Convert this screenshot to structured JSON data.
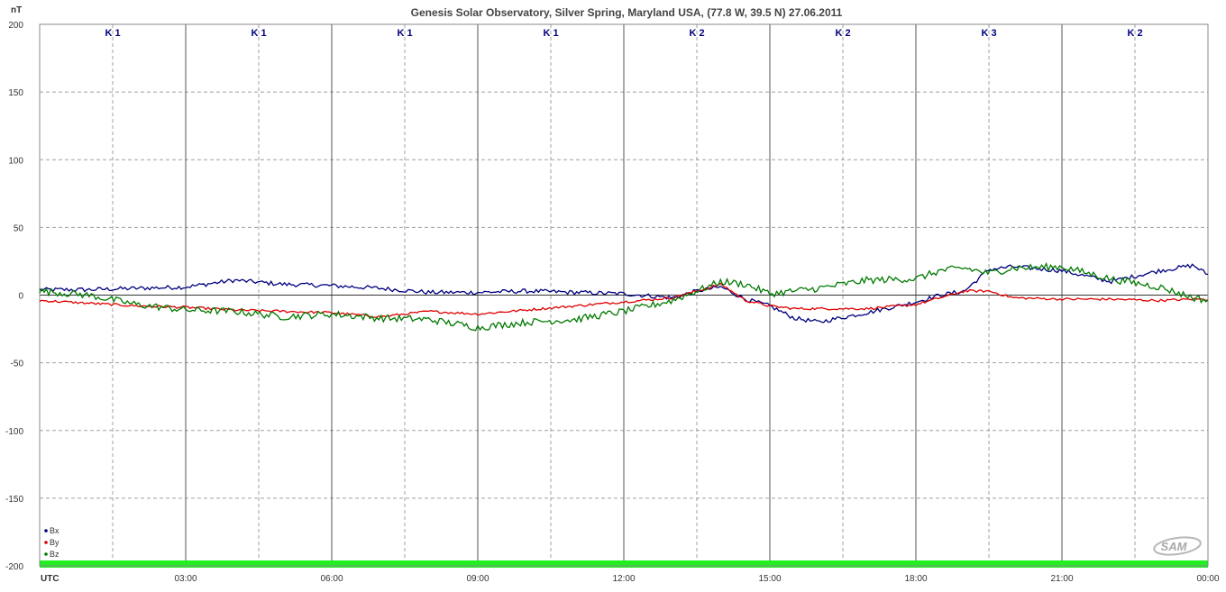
{
  "chart_data": {
    "type": "line",
    "title": "Genesis Solar Observatory, Silver Spring, Maryland USA, (77.8 W, 39.5 N)  27.06.2011",
    "ylabel": "nT",
    "xlabel": "UTC",
    "ylim": [
      -200,
      200
    ],
    "xlim_hours": [
      0,
      24
    ],
    "y_ticks": [
      200,
      150,
      100,
      50,
      0,
      -50,
      -100,
      -150,
      -200
    ],
    "x_ticks": [
      "03:00",
      "06:00",
      "09:00",
      "12:00",
      "15:00",
      "18:00",
      "21:00",
      "00:00"
    ],
    "grid": true,
    "k_indices": [
      "K 1",
      "K 1",
      "K 1",
      "K 1",
      "K 2",
      "K 2",
      "K 3",
      "K 2"
    ],
    "legend": {
      "position": "bottom-left",
      "entries": [
        "Bx",
        "By",
        "Bz"
      ]
    },
    "logo": "SAM",
    "x_hours": [
      0,
      1,
      2,
      3,
      4,
      5,
      6,
      7,
      8,
      9,
      10,
      11,
      12,
      13,
      13.5,
      14,
      14.5,
      15,
      15.5,
      16,
      17,
      18,
      18.5,
      19,
      19.5,
      20,
      21,
      22,
      23,
      23.7,
      24
    ],
    "series": [
      {
        "name": "Bx",
        "color": "#000080",
        "values": [
          4,
          4,
          5,
          6,
          11,
          8,
          7,
          5,
          2,
          2,
          3,
          2,
          1,
          -2,
          3,
          6,
          -3,
          -8,
          -17,
          -20,
          -13,
          -5,
          0,
          3,
          19,
          21,
          18,
          10,
          18,
          22,
          15
        ]
      },
      {
        "name": "By",
        "color": "#e00000",
        "values": [
          -4,
          -6,
          -8,
          -9,
          -11,
          -12,
          -13,
          -16,
          -12,
          -14,
          -11,
          -8,
          -5,
          -2,
          3,
          8,
          -4,
          -8,
          -10,
          -10,
          -10,
          -7,
          -2,
          3,
          3,
          -2,
          -3,
          -3,
          -4,
          -3,
          -3
        ]
      },
      {
        "name": "Bz",
        "color": "#007a00",
        "values": [
          3,
          0,
          -7,
          -11,
          -12,
          -16,
          -14,
          -17,
          -18,
          -24,
          -20,
          -18,
          -12,
          -4,
          3,
          10,
          8,
          1,
          3,
          5,
          11,
          12,
          18,
          20,
          16,
          20,
          21,
          12,
          6,
          -2,
          -4
        ]
      }
    ]
  }
}
